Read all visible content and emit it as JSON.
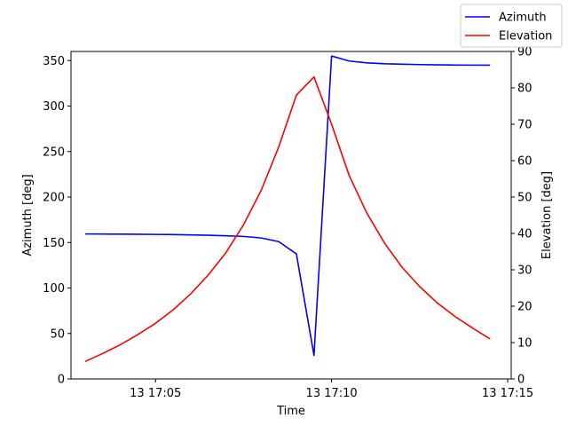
{
  "chart_data": {
    "type": "line",
    "xlabel": "Time",
    "x_ticks": [
      "13 17:05",
      "13 17:10",
      "13 17:15"
    ],
    "x_tick_minutes": [
      5,
      10,
      15
    ],
    "xlim_minutes": [
      2.6,
      15.1
    ],
    "x_unit_note": "minutes after 17:00 on day 13",
    "left_axis": {
      "label": "Azimuth [deg]",
      "ylim": [
        0,
        360
      ],
      "ticks": [
        0,
        50,
        100,
        150,
        200,
        250,
        300,
        350
      ]
    },
    "right_axis": {
      "label": "Elevation [deg]",
      "ylim": [
        0,
        90
      ],
      "ticks": [
        0,
        10,
        20,
        30,
        40,
        50,
        60,
        70,
        80,
        90
      ]
    },
    "legend_position": "top-right",
    "series": [
      {
        "name": "Azimuth",
        "color": "#0000ff",
        "axis": "left",
        "x": [
          3.0,
          3.5,
          4.0,
          4.5,
          5.0,
          5.5,
          6.0,
          6.5,
          7.0,
          7.5,
          8.0,
          8.5,
          9.0,
          9.5,
          10.0,
          10.5,
          11.0,
          11.5,
          12.0,
          12.5,
          13.0,
          13.5,
          14.0,
          14.5
        ],
        "y": [
          159.4,
          159.3,
          159.2,
          159.1,
          158.9,
          158.7,
          158.4,
          158.0,
          157.4,
          156.7,
          155.0,
          151.0,
          137.5,
          26.0,
          355.0,
          349.5,
          347.5,
          346.5,
          346.0,
          345.6,
          345.3,
          345.1,
          345.0,
          344.9
        ]
      },
      {
        "name": "Elevation",
        "color": "#ff0000",
        "axis": "right",
        "x": [
          3.0,
          3.5,
          4.0,
          4.5,
          5.0,
          5.5,
          6.0,
          6.5,
          7.0,
          7.5,
          8.0,
          8.5,
          9.0,
          9.5,
          10.0,
          10.5,
          11.0,
          11.5,
          12.0,
          12.5,
          13.0,
          13.5,
          14.0,
          14.5
        ],
        "y": [
          4.8,
          7.0,
          9.4,
          12.2,
          15.3,
          19.0,
          23.4,
          28.6,
          34.7,
          42.4,
          51.8,
          63.8,
          78.0,
          83.0,
          70.0,
          55.9,
          45.6,
          37.4,
          30.7,
          25.4,
          20.9,
          17.2,
          14.0,
          11.0
        ]
      }
    ]
  }
}
